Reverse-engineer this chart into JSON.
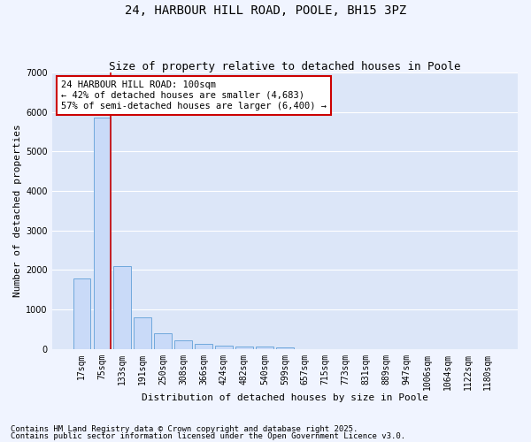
{
  "title_line1": "24, HARBOUR HILL ROAD, POOLE, BH15 3PZ",
  "title_line2": "Size of property relative to detached houses in Poole",
  "xlabel": "Distribution of detached houses by size in Poole",
  "ylabel": "Number of detached properties",
  "categories": [
    "17sqm",
    "75sqm",
    "133sqm",
    "191sqm",
    "250sqm",
    "308sqm",
    "366sqm",
    "424sqm",
    "482sqm",
    "540sqm",
    "599sqm",
    "657sqm",
    "715sqm",
    "773sqm",
    "831sqm",
    "889sqm",
    "947sqm",
    "1006sqm",
    "1064sqm",
    "1122sqm",
    "1180sqm"
  ],
  "values": [
    1780,
    5870,
    2090,
    810,
    390,
    210,
    130,
    90,
    65,
    55,
    50,
    0,
    0,
    0,
    0,
    0,
    0,
    0,
    0,
    0,
    0
  ],
  "bar_color": "#c9daf8",
  "bar_edge_color": "#6fa8dc",
  "highlight_line_color": "#cc0000",
  "annotation_text": "24 HARBOUR HILL ROAD: 100sqm\n← 42% of detached houses are smaller (4,683)\n57% of semi-detached houses are larger (6,400) →",
  "annotation_box_color": "#ffffff",
  "annotation_box_edge": "#cc0000",
  "ylim": [
    0,
    7000
  ],
  "yticks": [
    0,
    1000,
    2000,
    3000,
    4000,
    5000,
    6000,
    7000
  ],
  "background_color": "#dce6f8",
  "grid_color": "#ffffff",
  "fig_background": "#f0f4ff",
  "footer_line1": "Contains HM Land Registry data © Crown copyright and database right 2025.",
  "footer_line2": "Contains public sector information licensed under the Open Government Licence v3.0.",
  "title_fontsize": 10,
  "subtitle_fontsize": 9,
  "axis_label_fontsize": 8,
  "tick_fontsize": 7,
  "annotation_fontsize": 7.5,
  "footer_fontsize": 6.5
}
